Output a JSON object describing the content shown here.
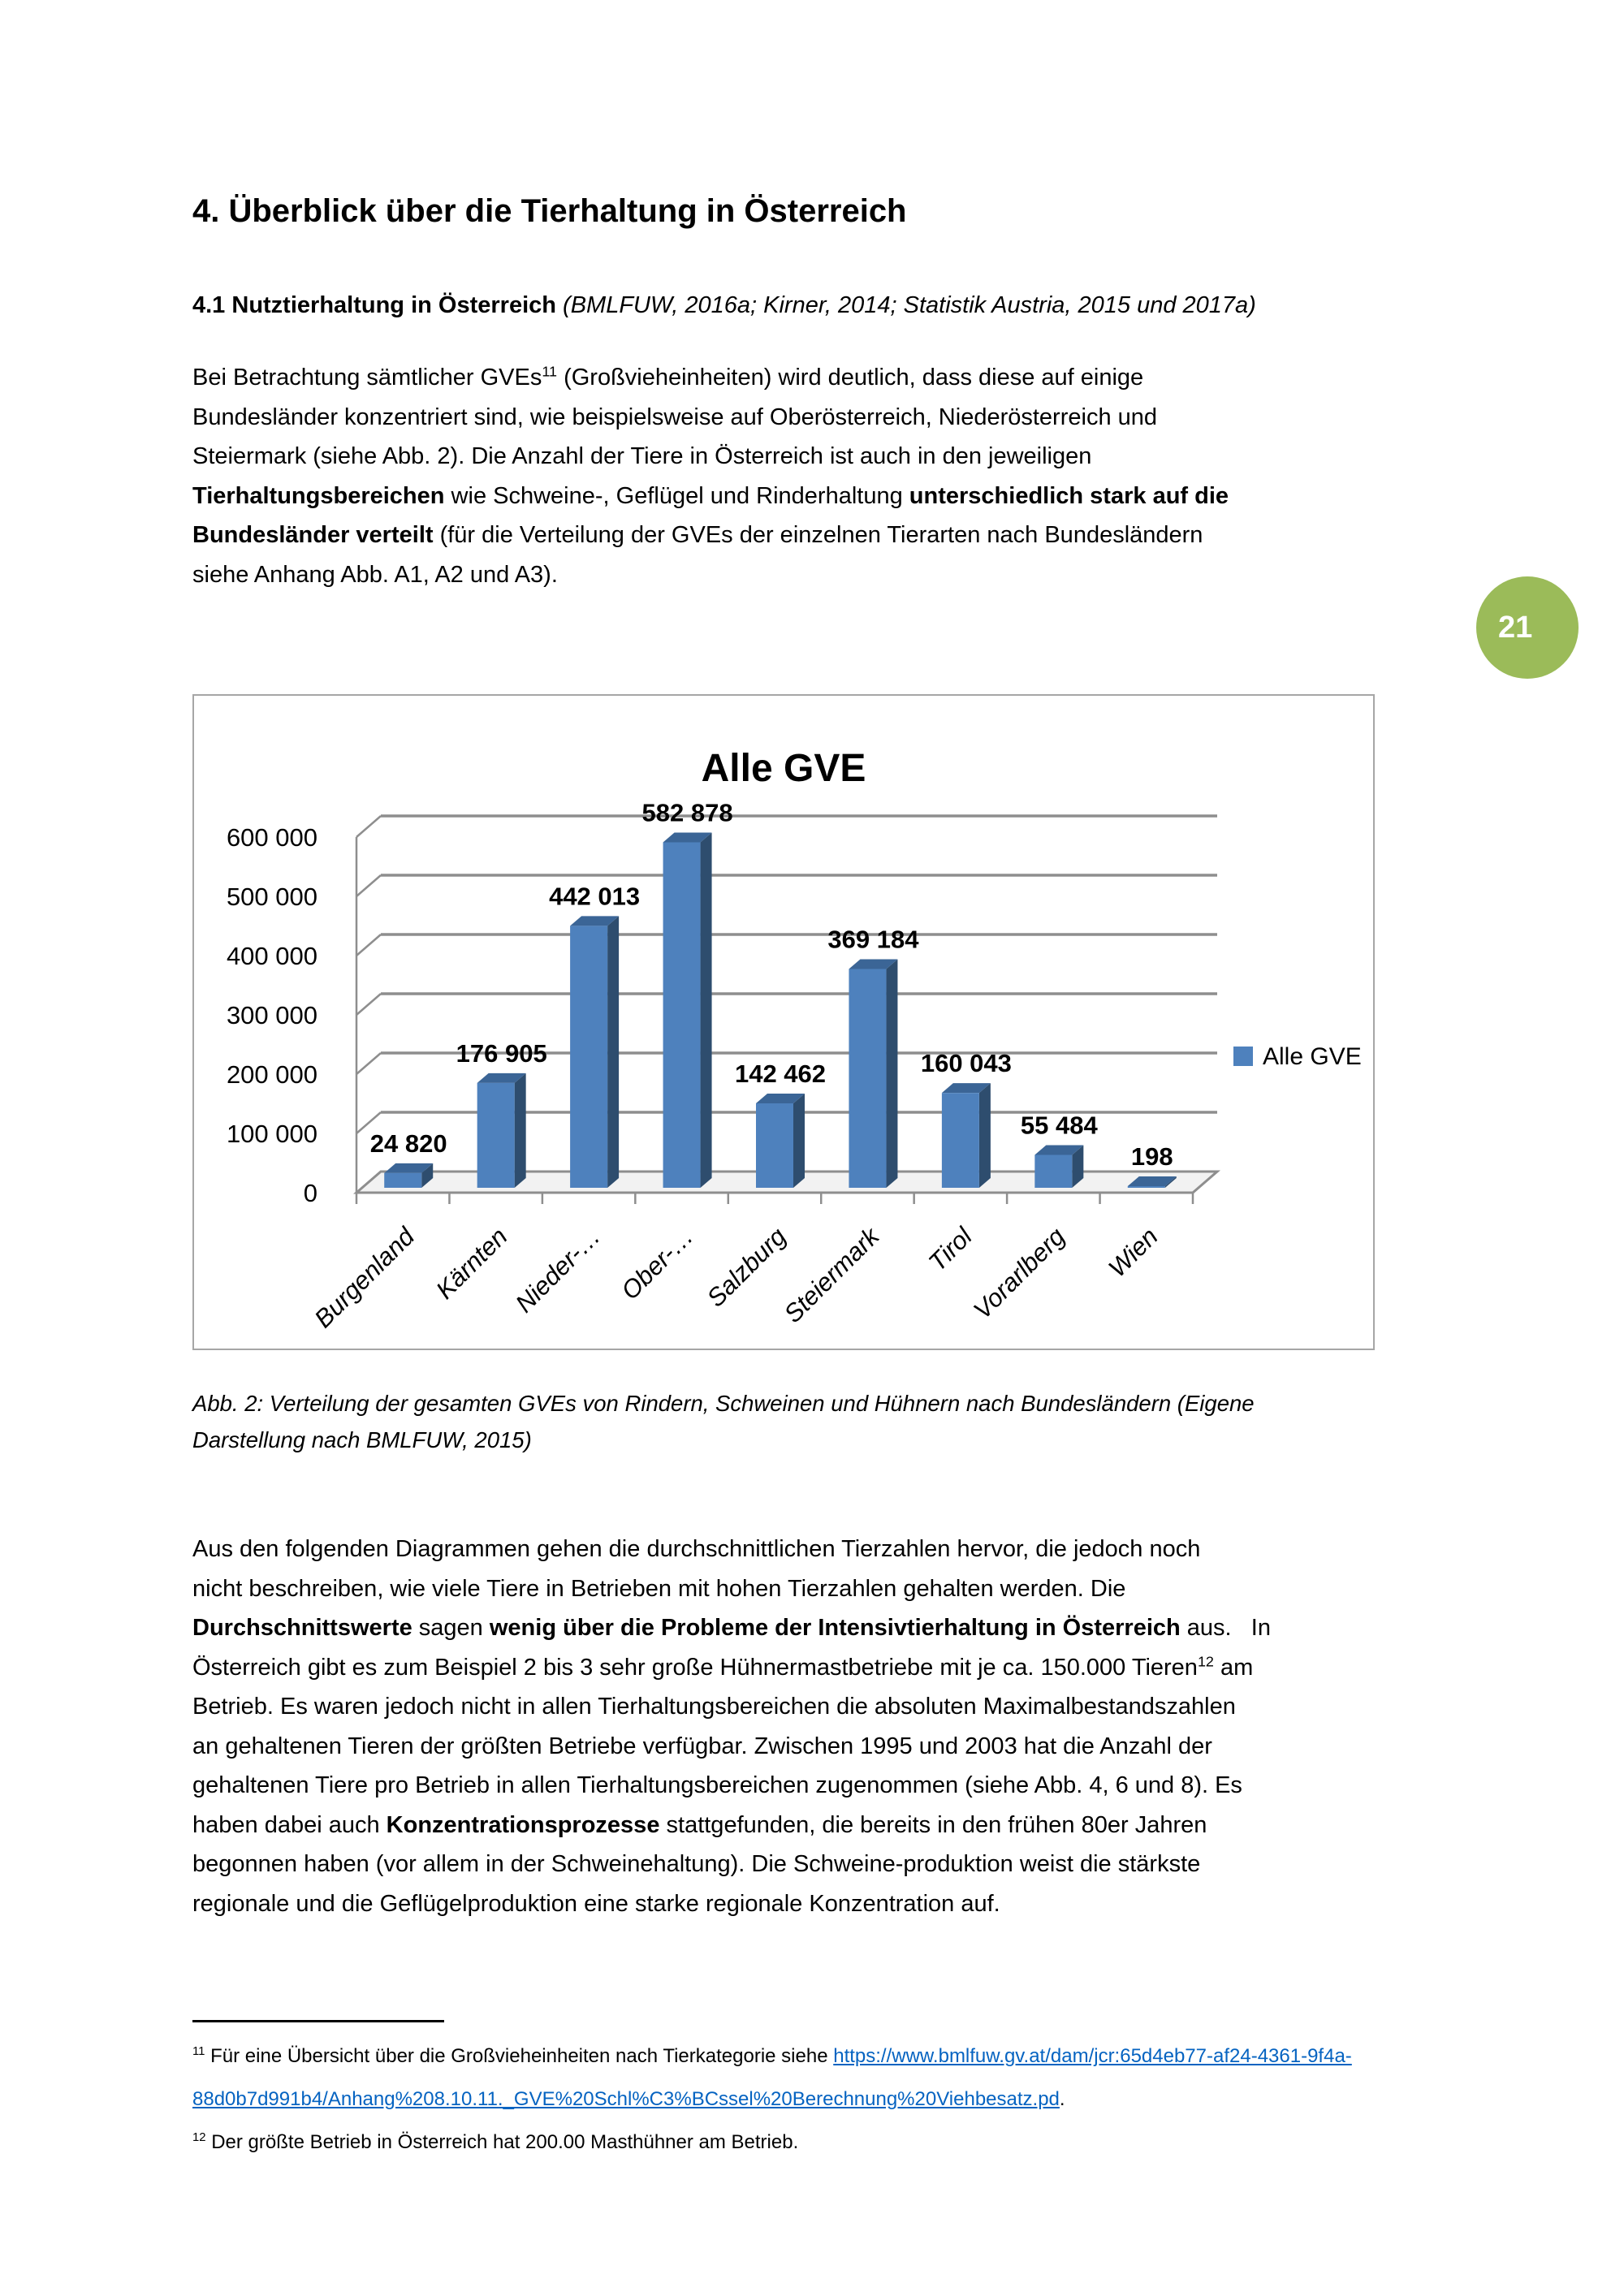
{
  "page": {
    "number_badge": "21"
  },
  "colors": {
    "badge_green": "#9BBB59",
    "link_blue": "#0563C1",
    "chart_border": "#A6A6A6"
  },
  "heading": "4. Überblick über die Tierhaltung in Österreich",
  "subheading": {
    "bold": "4.1 Nutztierhaltung in Österreich ",
    "italic": "(BMLFUW, 2016a; Kirner, 2014; Statistik Austria, 2015 und 2017a)"
  },
  "paragraph1_lines": [
    [
      {
        "t": "Bei Betrachtung sämtlicher GVEs"
      },
      {
        "t": "11",
        "sup": true
      },
      {
        "t": " (Großvieheinheiten) wird deutlich, dass diese auf einige"
      }
    ],
    [
      "Bundesländer konzentriert sind, wie beispielsweise auf Oberösterreich, Niederösterreich und"
    ],
    [
      "Steiermark (siehe Abb. 2). Die Anzahl der Tiere in Österreich ist auch in den jeweiligen"
    ],
    [
      {
        "t": "Tierhaltungsbereichen",
        "b": true
      },
      {
        "t": " wie Schweine-, Geflügel und Rinderhaltung "
      },
      {
        "t": "unterschiedlich stark auf die",
        "b": true
      }
    ],
    [
      {
        "t": "Bundesländer verteilt",
        "b": true
      },
      {
        "t": " (für die Verteilung der GVEs der einzelnen Tierarten nach Bundesländern"
      }
    ],
    [
      "siehe Anhang Abb. A1, A2 und A3)."
    ]
  ],
  "chart_data": {
    "type": "bar",
    "style": "3d-column",
    "title": "Alle GVE",
    "categories": [
      "Burgenland",
      "Kärnten",
      "Nieder-…",
      "Ober-…",
      "Salzburg",
      "Steiermark",
      "Tirol",
      "Vorarlberg",
      "Wien"
    ],
    "series": [
      {
        "name": "Alle GVE",
        "values": [
          24820,
          176905,
          442013,
          582878,
          142462,
          369184,
          160043,
          55484,
          198
        ]
      }
    ],
    "value_labels": [
      "24 820",
      "176 905",
      "442 013",
      "582 878",
      "142 462",
      "369 184",
      "160 043",
      "55 484",
      "198"
    ],
    "xlabel": "",
    "ylabel": "",
    "ylim": [
      0,
      600000
    ],
    "ytick_step": 100000,
    "ytick_labels": [
      "0",
      "100 000",
      "200 000",
      "300 000",
      "400 000",
      "500 000",
      "600 000"
    ],
    "grid": true,
    "legend": {
      "label": "Alle GVE",
      "position": "right"
    },
    "colors": {
      "bar_front": "#4E81BD",
      "bar_side": "#2E4D6E",
      "bar_top": "#3B6596",
      "gridline": "#8E8E8E",
      "floor": "#F2F2F2"
    }
  },
  "caption_lines": [
    [
      "Abb. 2: Verteilung der gesamten GVEs von Rindern, Schweinen und Hühnern nach Bundesländern (Eigene"
    ],
    [
      "Darstellung nach BMLFUW, 2015)"
    ]
  ],
  "paragraph2_lines": [
    [
      "Aus den folgenden Diagrammen gehen die durchschnittlichen Tierzahlen hervor, die jedoch noch"
    ],
    [
      "nicht beschreiben, wie viele Tiere in Betrieben mit hohen Tierzahlen gehalten werden. Die"
    ],
    [
      {
        "t": "Durchschnittswerte",
        "b": true
      },
      {
        "t": " sagen "
      },
      {
        "t": "wenig über die Probleme der Intensivtierhaltung in Österreich",
        "b": true
      },
      {
        "t": " aus.   In"
      }
    ],
    [
      {
        "t": "Österreich gibt es zum Beispiel 2 bis 3 sehr große Hühnermastbetriebe mit je ca. 150.000 Tieren"
      },
      {
        "t": "12",
        "sup": true
      },
      {
        "t": " am"
      }
    ],
    [
      "Betrieb. Es waren jedoch nicht in allen Tierhaltungsbereichen die absoluten Maximalbestandszahlen"
    ],
    [
      "an gehaltenen Tieren der größten Betriebe verfügbar. Zwischen 1995 und 2003 hat die Anzahl der"
    ],
    [
      "gehaltenen Tiere pro Betrieb in allen Tierhaltungsbereichen zugenommen (siehe Abb. 4, 6 und 8). Es"
    ],
    [
      {
        "t": "haben dabei auch "
      },
      {
        "t": "Konzentrationsprozesse",
        "b": true
      },
      {
        "t": " stattgefunden, die bereits in den frühen 80er Jahren"
      }
    ],
    [
      "begonnen haben (vor allem in der Schweinehaltung). Die Schweine-produktion weist die stärkste"
    ],
    [
      "regionale und die Geflügelproduktion eine starke regionale Konzentration auf."
    ]
  ],
  "footnotes": [
    {
      "lines": [
        [
          {
            "t": "11",
            "sup": true
          },
          {
            "t": " Für eine Übersicht über die Großvieheinheiten nach Tierkategorie siehe "
          },
          {
            "t": "https://www.bmlfuw.gv.at/dam/jcr:65d4eb77-af24-4361-9f4a-",
            "link": true
          }
        ],
        [
          {
            "t": "88d0b7d991b4/Anhang%208.10.11._GVE%20Schl%C3%BCssel%20Berechnung%20Viehbesatz.pd",
            "link": true
          },
          {
            "t": "."
          }
        ]
      ]
    },
    {
      "lines": [
        [
          {
            "t": "12",
            "sup": true
          },
          {
            "t": " Der größte Betrieb in Österreich hat 200.00 Masthühner am Betrieb."
          }
        ]
      ]
    }
  ]
}
